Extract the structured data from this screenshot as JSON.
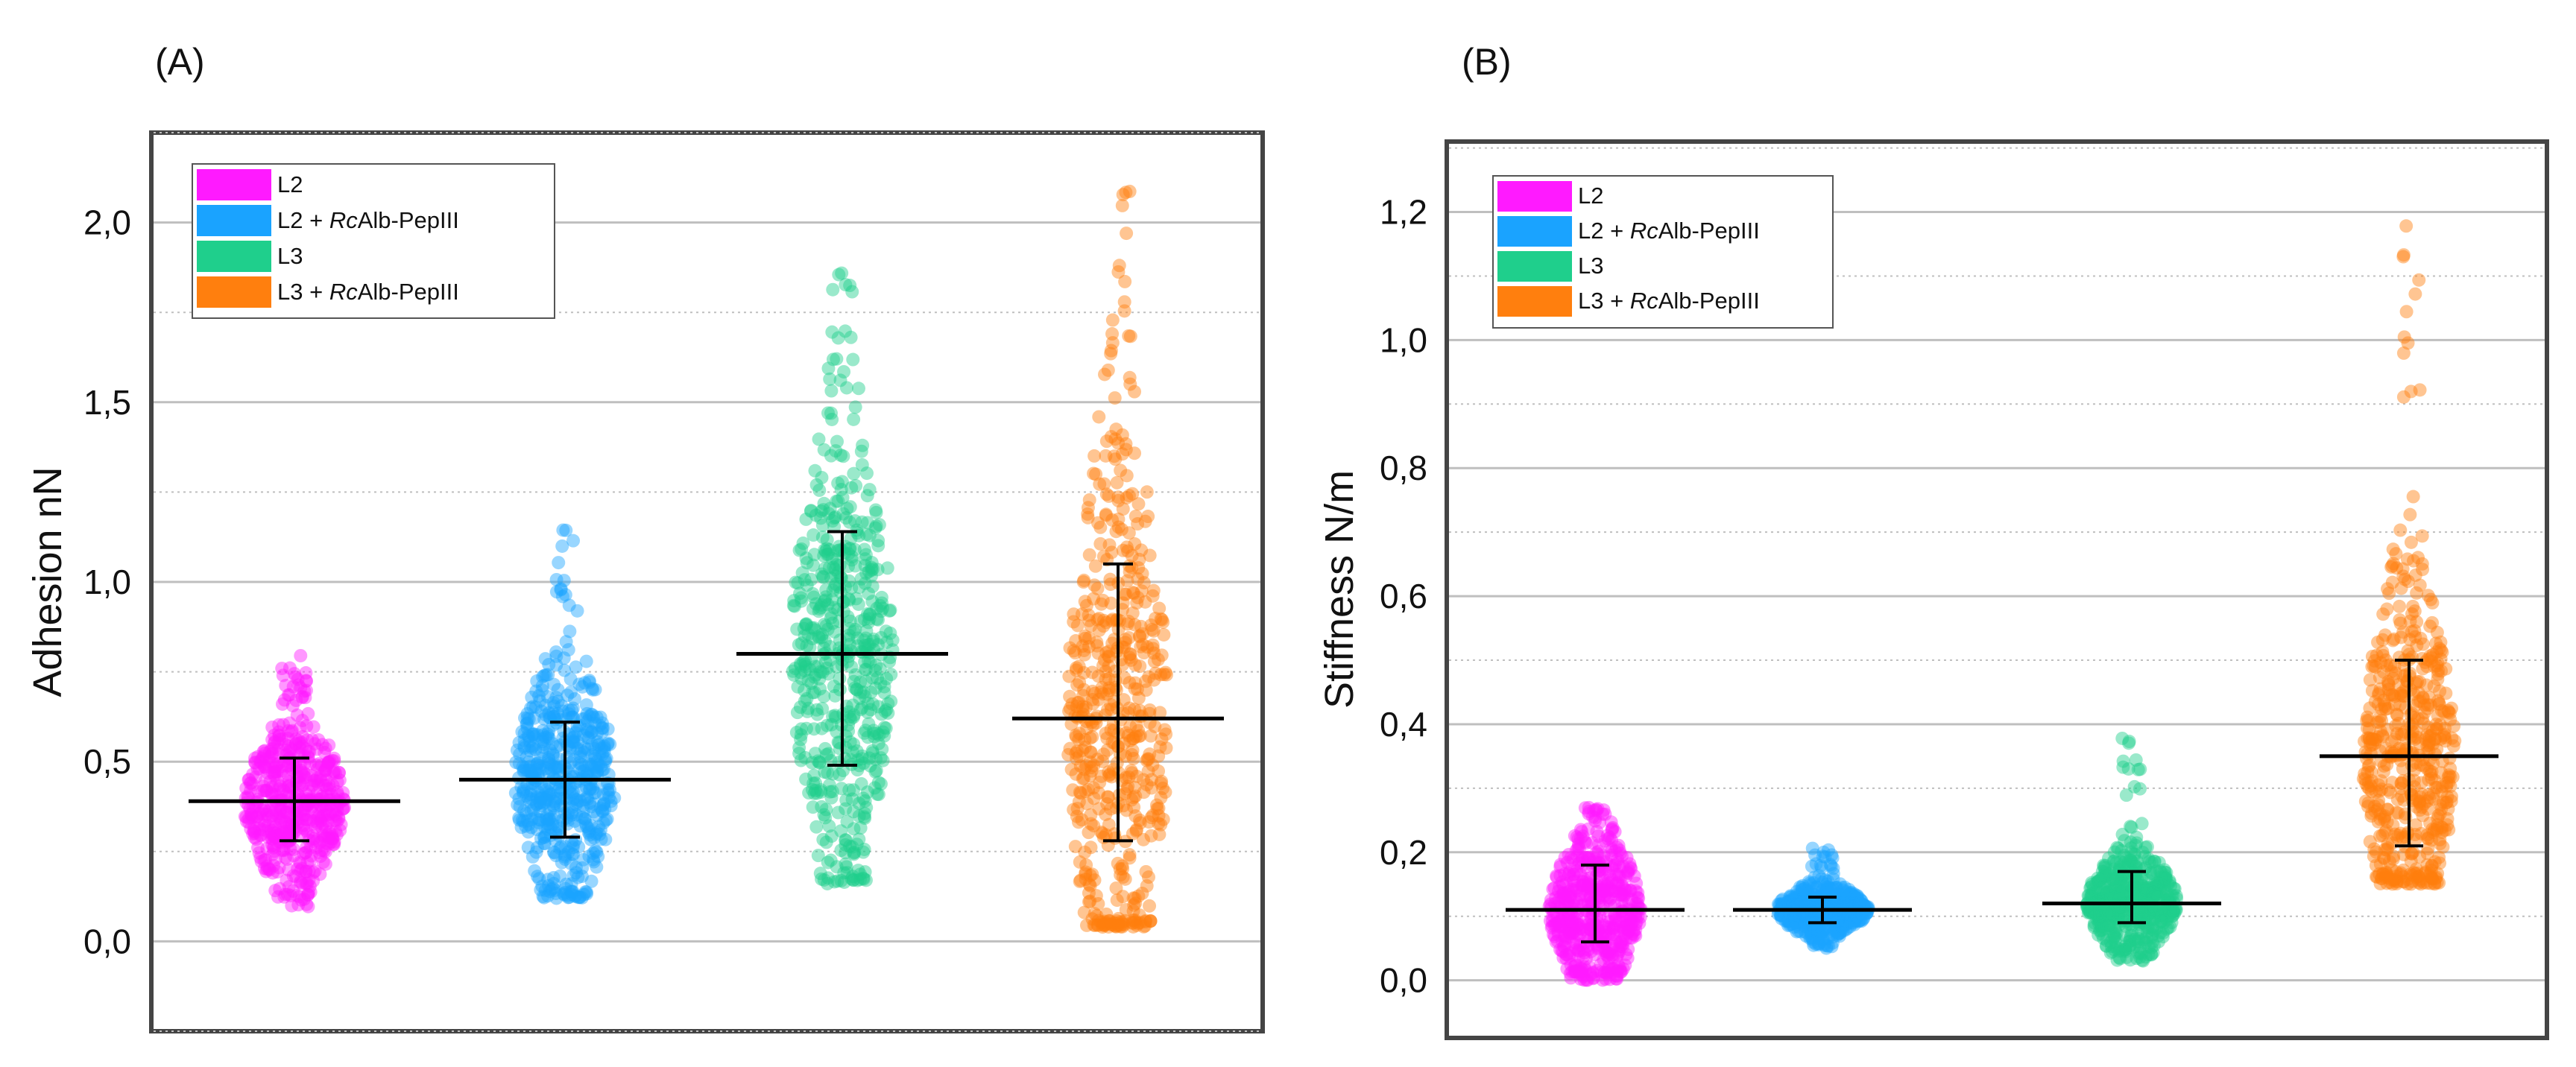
{
  "colors": {
    "L2": "#ff1aff",
    "L2_RcAlb": "#1aa3ff",
    "L3": "#1fcf8c",
    "L3_RcAlb": "#ff7f0e",
    "gridline": "#bfbfbf",
    "frame": "#444444",
    "stat": "#000000"
  },
  "legend_entries": [
    {
      "base": "L2",
      "italic": "",
      "suffix": ""
    },
    {
      "base": "L2 + ",
      "italic": "Rc",
      "suffix": "Alb-PepIII"
    },
    {
      "base": "L3",
      "italic": "",
      "suffix": ""
    },
    {
      "base": "L3 + ",
      "italic": "Rc",
      "suffix": "Alb-PepIII"
    }
  ],
  "chart_data": [
    {
      "type": "scatter",
      "panel_label": "(A)",
      "ylabel": "Adhesion nN",
      "ylim": [
        -0.25,
        2.25
      ],
      "yticks": [
        0.0,
        0.5,
        1.0,
        1.5,
        2.0
      ],
      "ytick_labels": [
        "0,0",
        "0,5",
        "1,0",
        "1,5",
        "2,0"
      ],
      "grid": true,
      "legend_position": "top-left",
      "series": [
        {
          "name": "L2",
          "mean": 0.39,
          "sd_low": 0.28,
          "sd_high": 0.51,
          "min": 0.09,
          "max": 0.8
        },
        {
          "name": "L2 + RcAlb-PepIII",
          "mean": 0.45,
          "sd_low": 0.29,
          "sd_high": 0.61,
          "min": 0.12,
          "max": 1.16
        },
        {
          "name": "L3",
          "mean": 0.8,
          "sd_low": 0.49,
          "sd_high": 1.14,
          "min": 0.16,
          "max": 1.86
        },
        {
          "name": "L3 + RcAlb-PepIII",
          "mean": 0.62,
          "sd_low": 0.28,
          "sd_high": 1.05,
          "min": 0.04,
          "max": 2.1
        }
      ]
    },
    {
      "type": "scatter",
      "panel_label": "(B)",
      "ylabel": "Stiffness N/m",
      "ylim": [
        -0.09,
        1.31
      ],
      "yticks": [
        0.0,
        0.2,
        0.4,
        0.6,
        0.8,
        1.0,
        1.2
      ],
      "ytick_labels": [
        "0,0",
        "0,2",
        "0,4",
        "0,6",
        "0,8",
        "1,0",
        "1,2"
      ],
      "grid": true,
      "legend_position": "top-left",
      "series": [
        {
          "name": "L2",
          "mean": 0.11,
          "sd_low": 0.06,
          "sd_high": 0.18,
          "min": 0.0,
          "max": 0.27
        },
        {
          "name": "L2 + RcAlb-PepIII",
          "mean": 0.11,
          "sd_low": 0.09,
          "sd_high": 0.13,
          "min": 0.05,
          "max": 0.21
        },
        {
          "name": "L3",
          "mean": 0.12,
          "sd_low": 0.09,
          "sd_high": 0.17,
          "min": 0.03,
          "max": 0.38
        },
        {
          "name": "L3 + RcAlb-PepIII",
          "mean": 0.35,
          "sd_low": 0.21,
          "sd_high": 0.5,
          "min": 0.15,
          "max": 1.18
        }
      ]
    }
  ]
}
